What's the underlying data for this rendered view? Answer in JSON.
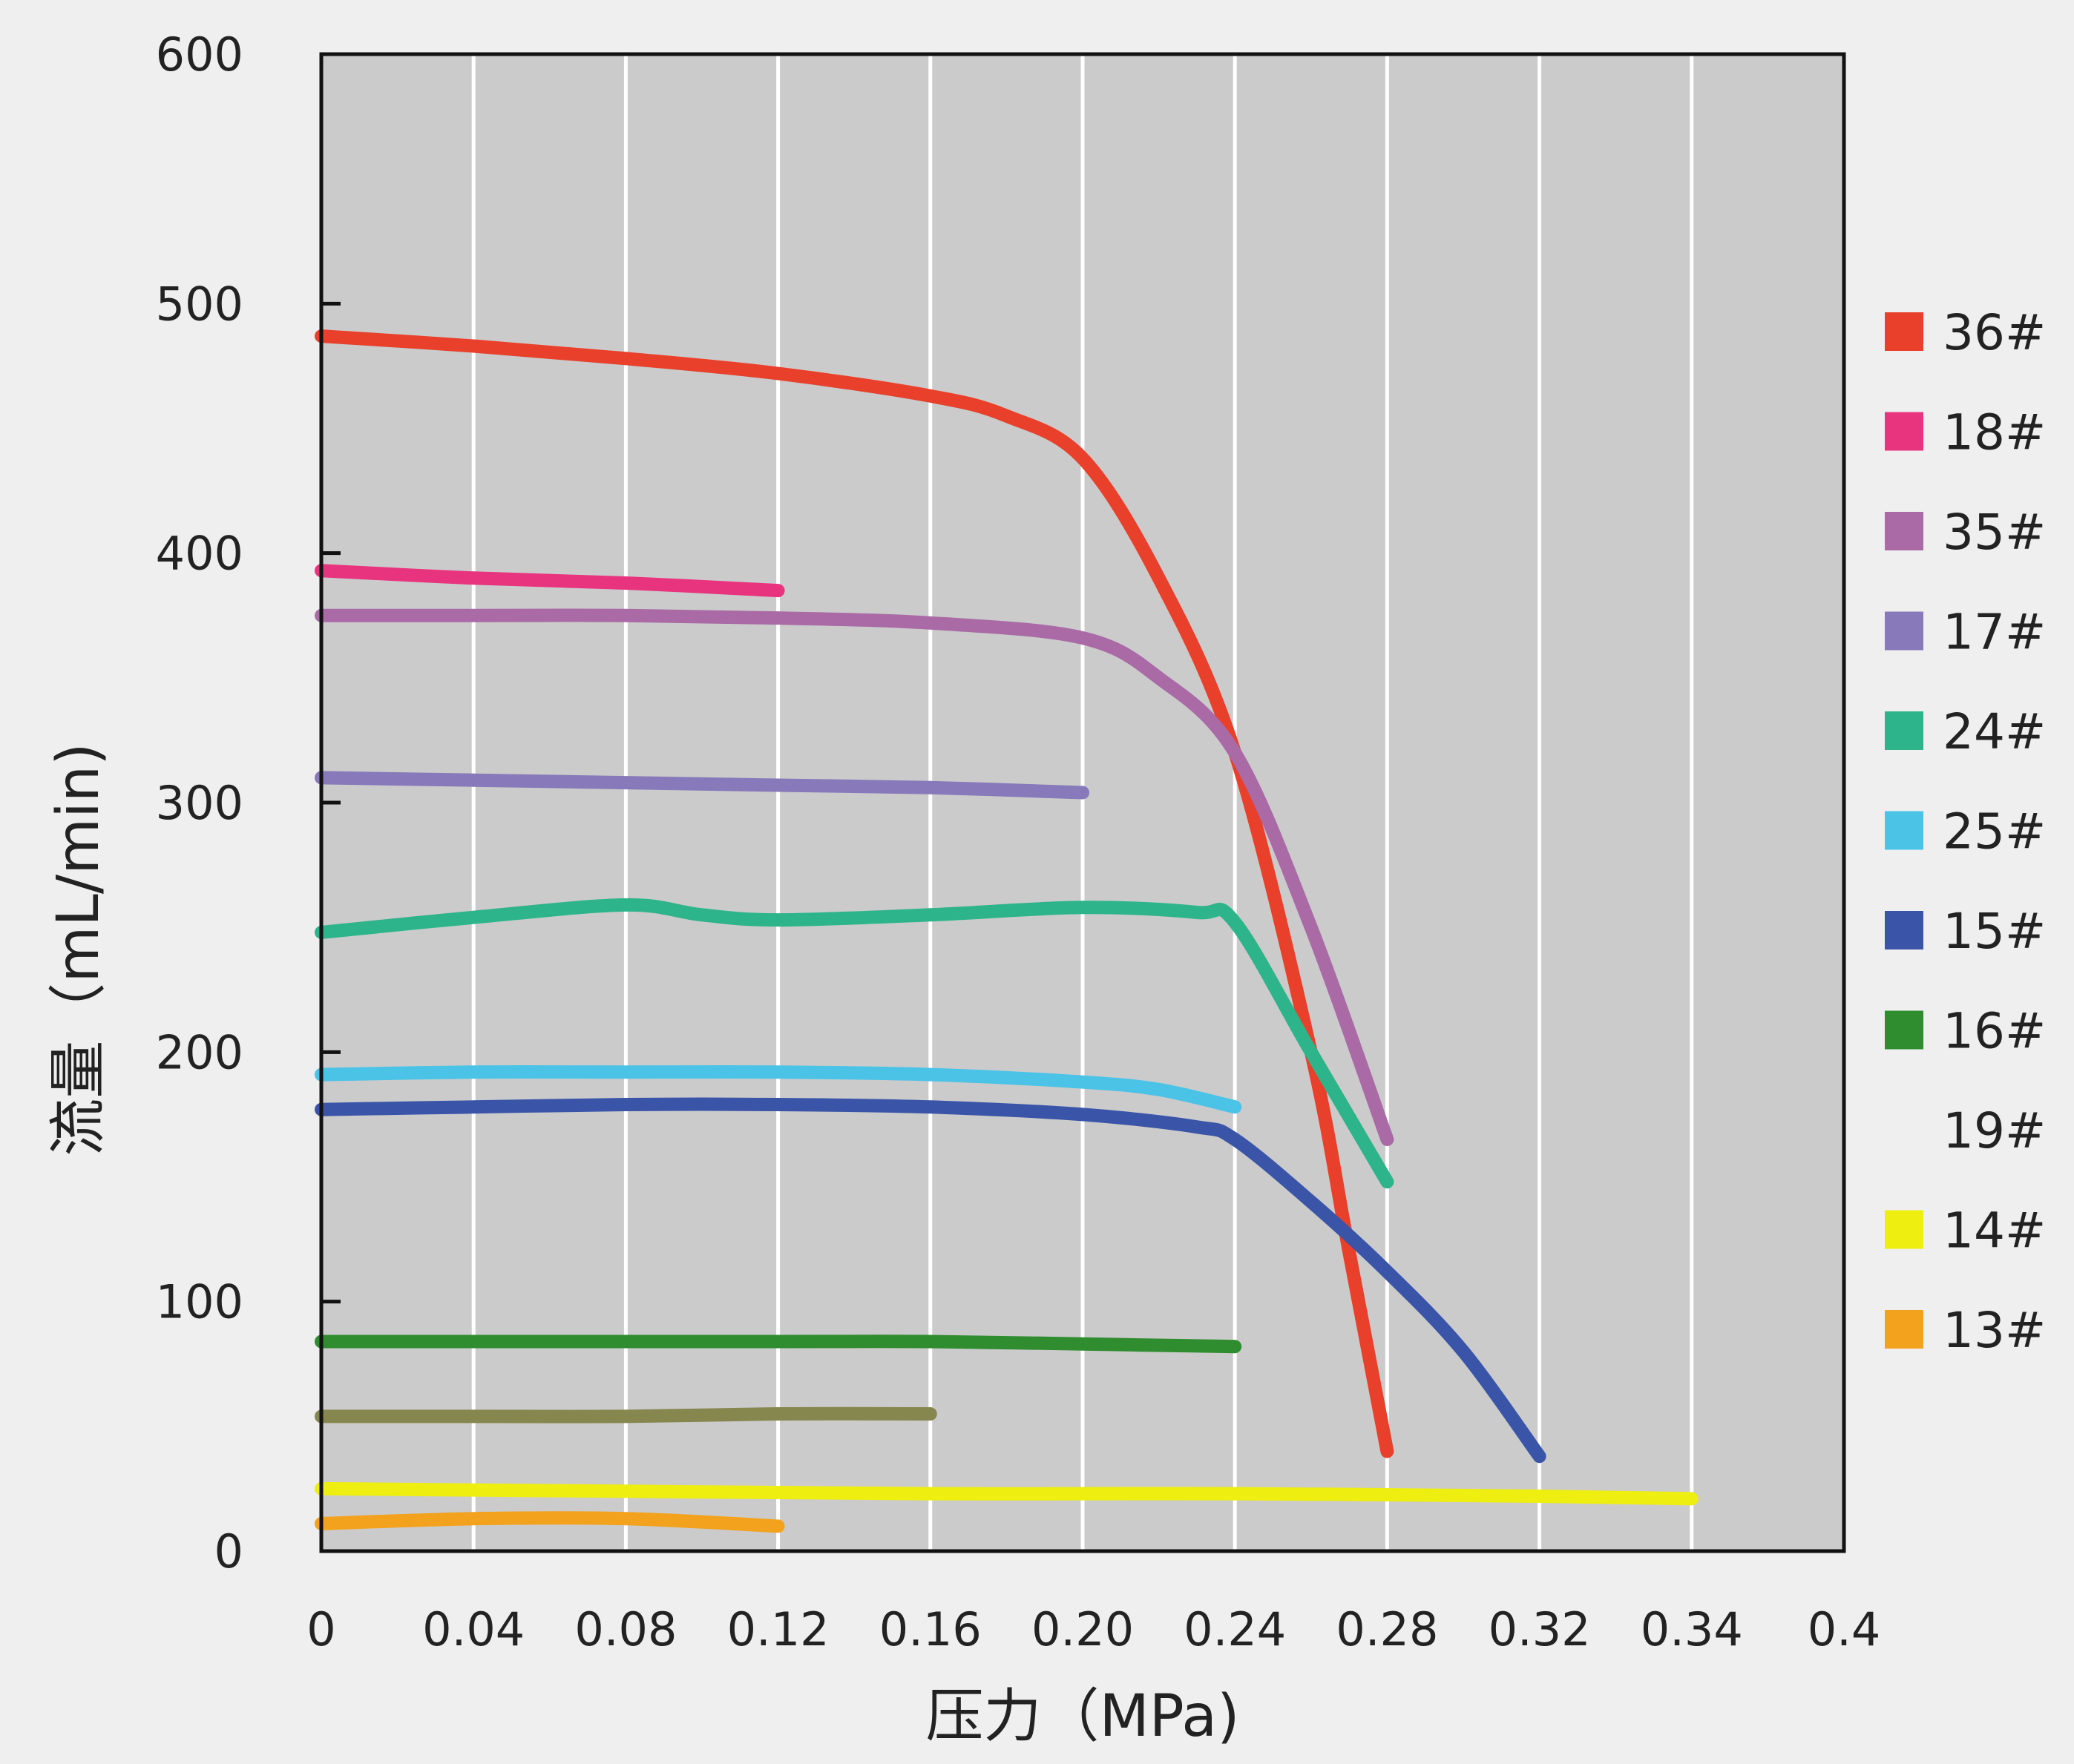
{
  "chart_data": {
    "type": "line",
    "xlabel": "压力（MPa)",
    "ylabel": "流量（mL/min)",
    "xlim": [
      0,
      0.4
    ],
    "ylim": [
      0,
      600
    ],
    "x_tick_labels": [
      "0",
      "0.04",
      "0.08",
      "0.12",
      "0.16",
      "0.20",
      "0.24",
      "0.28",
      "0.32",
      "0.34",
      "0.4"
    ],
    "y_tick_labels": [
      "0",
      "100",
      "200",
      "300",
      "400",
      "500",
      "600"
    ],
    "grid": "vertical",
    "legend_position": "right",
    "series": [
      {
        "name": "36#",
        "color": "#e8402a",
        "points": [
          [
            0,
            487
          ],
          [
            0.04,
            483
          ],
          [
            0.08,
            478
          ],
          [
            0.12,
            472
          ],
          [
            0.16,
            463
          ],
          [
            0.18,
            455
          ],
          [
            0.2,
            438
          ],
          [
            0.22,
            390
          ],
          [
            0.24,
            320
          ],
          [
            0.26,
            200
          ],
          [
            0.27,
            120
          ],
          [
            0.28,
            40
          ]
        ]
      },
      {
        "name": "18#",
        "color": "#e8347f",
        "points": [
          [
            0,
            393
          ],
          [
            0.04,
            390
          ],
          [
            0.08,
            388
          ],
          [
            0.12,
            385
          ]
        ]
      },
      {
        "name": "35#",
        "color": "#a96aa6",
        "points": [
          [
            0,
            375
          ],
          [
            0.04,
            375
          ],
          [
            0.08,
            375
          ],
          [
            0.12,
            374
          ],
          [
            0.16,
            372
          ],
          [
            0.2,
            366
          ],
          [
            0.22,
            350
          ],
          [
            0.24,
            320
          ],
          [
            0.26,
            250
          ],
          [
            0.28,
            165
          ]
        ]
      },
      {
        "name": "17#",
        "color": "#8779ba",
        "points": [
          [
            0,
            310
          ],
          [
            0.04,
            309
          ],
          [
            0.08,
            308
          ],
          [
            0.12,
            307
          ],
          [
            0.16,
            306
          ],
          [
            0.2,
            304
          ]
        ]
      },
      {
        "name": "24#",
        "color": "#2db48a",
        "points": [
          [
            0,
            248
          ],
          [
            0.04,
            254
          ],
          [
            0.08,
            259
          ],
          [
            0.1,
            255
          ],
          [
            0.12,
            253
          ],
          [
            0.16,
            255
          ],
          [
            0.2,
            258
          ],
          [
            0.23,
            256
          ],
          [
            0.24,
            252
          ],
          [
            0.26,
            200
          ],
          [
            0.28,
            148
          ]
        ]
      },
      {
        "name": "25#",
        "color": "#4ac3e7",
        "points": [
          [
            0,
            191
          ],
          [
            0.04,
            192
          ],
          [
            0.08,
            192
          ],
          [
            0.12,
            192
          ],
          [
            0.16,
            191
          ],
          [
            0.2,
            188
          ],
          [
            0.22,
            185
          ],
          [
            0.24,
            178
          ]
        ]
      },
      {
        "name": "15#",
        "color": "#3a55a8",
        "points": [
          [
            0,
            177
          ],
          [
            0.04,
            178
          ],
          [
            0.08,
            179
          ],
          [
            0.12,
            179
          ],
          [
            0.16,
            178
          ],
          [
            0.2,
            175
          ],
          [
            0.23,
            170
          ],
          [
            0.24,
            165
          ],
          [
            0.26,
            140
          ],
          [
            0.28,
            112
          ],
          [
            0.3,
            80
          ],
          [
            0.32,
            38
          ]
        ]
      },
      {
        "name": "16#",
        "color": "#2f8c2f",
        "points": [
          [
            0,
            84
          ],
          [
            0.04,
            84
          ],
          [
            0.08,
            84
          ],
          [
            0.12,
            84
          ],
          [
            0.16,
            84
          ],
          [
            0.2,
            83
          ],
          [
            0.24,
            82
          ]
        ]
      },
      {
        "name": "19#",
        "color": "#86864f",
        "points": [
          [
            0,
            54
          ],
          [
            0.04,
            54
          ],
          [
            0.08,
            54
          ],
          [
            0.12,
            55
          ],
          [
            0.16,
            55
          ]
        ]
      },
      {
        "name": "14#",
        "color": "#eeee10",
        "points": [
          [
            0,
            25
          ],
          [
            0.08,
            24
          ],
          [
            0.16,
            23
          ],
          [
            0.24,
            23
          ],
          [
            0.32,
            22
          ],
          [
            0.36,
            21
          ]
        ]
      },
      {
        "name": "13#",
        "color": "#f2a21d",
        "points": [
          [
            0,
            11
          ],
          [
            0.04,
            13
          ],
          [
            0.08,
            13
          ],
          [
            0.12,
            10
          ]
        ]
      }
    ]
  }
}
